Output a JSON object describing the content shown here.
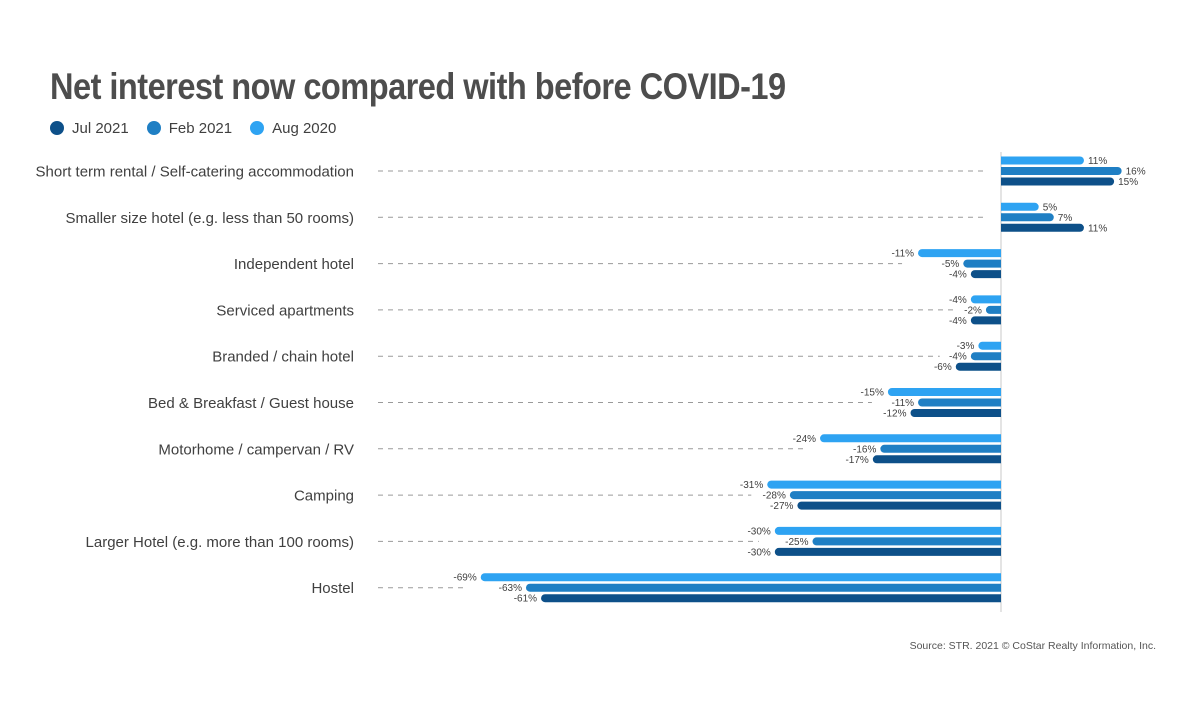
{
  "chart_data": {
    "type": "bar",
    "orientation": "horizontal",
    "title": "Net interest now compared with before COVID-19",
    "source": "Source: STR. 2021 © CoStar Realty Information, Inc.",
    "legend_position": "top-left",
    "grid": false,
    "xlim": [
      -70,
      20
    ],
    "categories": [
      "Short term rental / Self-catering accommodation",
      "Smaller size hotel (e.g. less than 50 rooms)",
      "Independent hotel",
      "Serviced apartments",
      "Branded / chain hotel",
      "Bed & Breakfast / Guest house",
      "Motorhome / campervan / RV",
      "Camping",
      "Larger Hotel (e.g. more than 100 rooms)",
      "Hostel"
    ],
    "series": [
      {
        "name": "Aug 2020",
        "color": "#2ea3f2",
        "values": [
          11,
          5,
          -11,
          -4,
          -3,
          -15,
          -24,
          -31,
          -30,
          -69
        ]
      },
      {
        "name": "Feb 2021",
        "color": "#1f7fc4",
        "values": [
          16,
          7,
          -5,
          -2,
          -4,
          -11,
          -16,
          -28,
          -25,
          -63
        ]
      },
      {
        "name": "Jul 2021",
        "color": "#0d5089",
        "values": [
          15,
          11,
          -4,
          -4,
          -6,
          -12,
          -17,
          -27,
          -30,
          -61
        ]
      }
    ],
    "legend_order": [
      "Jul 2021",
      "Feb 2021",
      "Aug 2020"
    ],
    "value_suffix": "%"
  }
}
